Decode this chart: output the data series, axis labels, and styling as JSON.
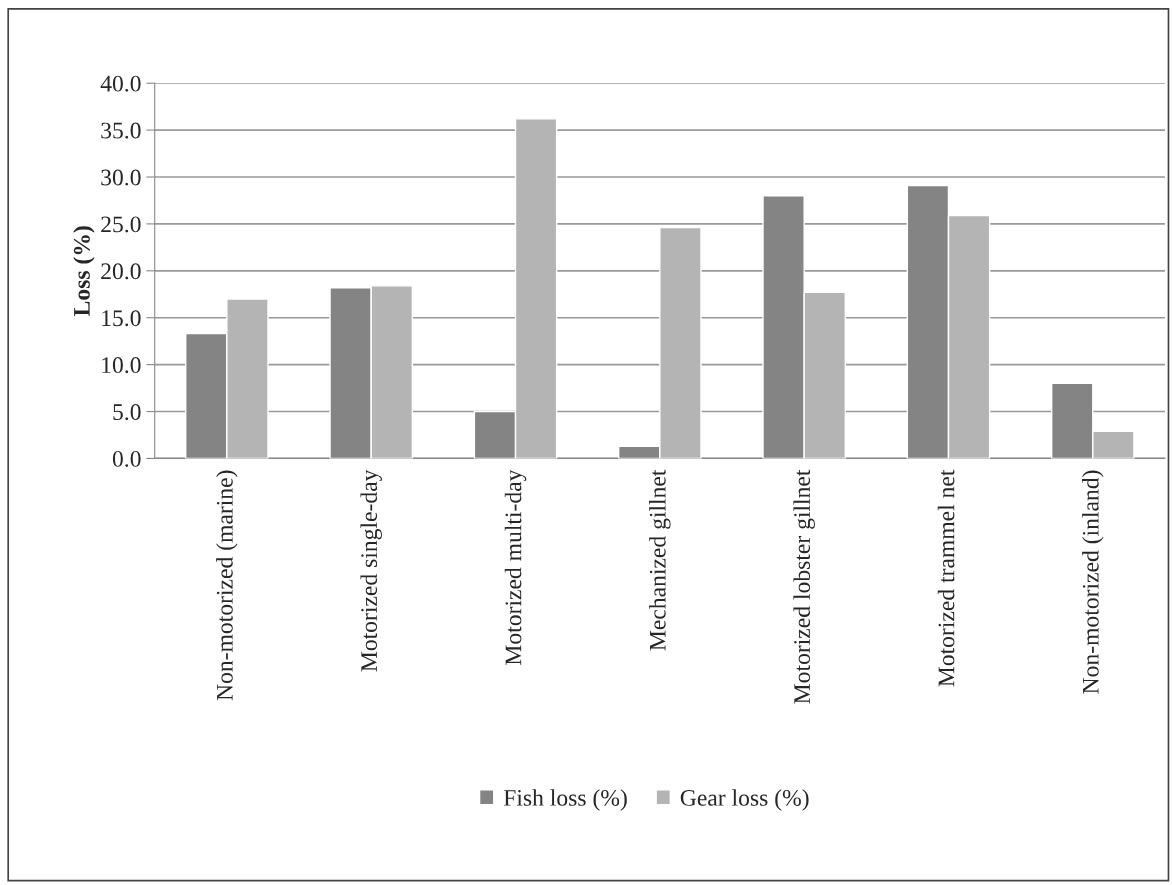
{
  "chart_data": {
    "type": "bar",
    "ylabel": "Loss (%)",
    "categories": [
      "Non-motorized (marine)",
      "Motorized single-day",
      "Motorized multi-day",
      "Mechanized gillnet",
      "Motorized lobster gillnet",
      "Motorized trammel net",
      "Non-motorized (inland)"
    ],
    "series": [
      {
        "name": "Fish loss (%)",
        "color": "#848484",
        "values": [
          13.3,
          18.2,
          5.0,
          1.3,
          28.0,
          29.1,
          8.0
        ]
      },
      {
        "name": "Gear loss (%)",
        "color": "#b4b4b4",
        "values": [
          17.0,
          18.4,
          36.2,
          24.6,
          17.7,
          25.9,
          2.9
        ]
      }
    ],
    "ylim": [
      0,
      40
    ],
    "yticks": [
      {
        "value": 0,
        "label": "0.0"
      },
      {
        "value": 5,
        "label": "5.0"
      },
      {
        "value": 10,
        "label": "10.0"
      },
      {
        "value": 15,
        "label": "15.0"
      },
      {
        "value": 20,
        "label": "20.0"
      },
      {
        "value": 25,
        "label": "25.0"
      },
      {
        "value": 30,
        "label": "30.0"
      },
      {
        "value": 35,
        "label": "35.0"
      },
      {
        "value": 40,
        "label": "40.0"
      }
    ],
    "grid": "y",
    "legend": "bottom"
  }
}
